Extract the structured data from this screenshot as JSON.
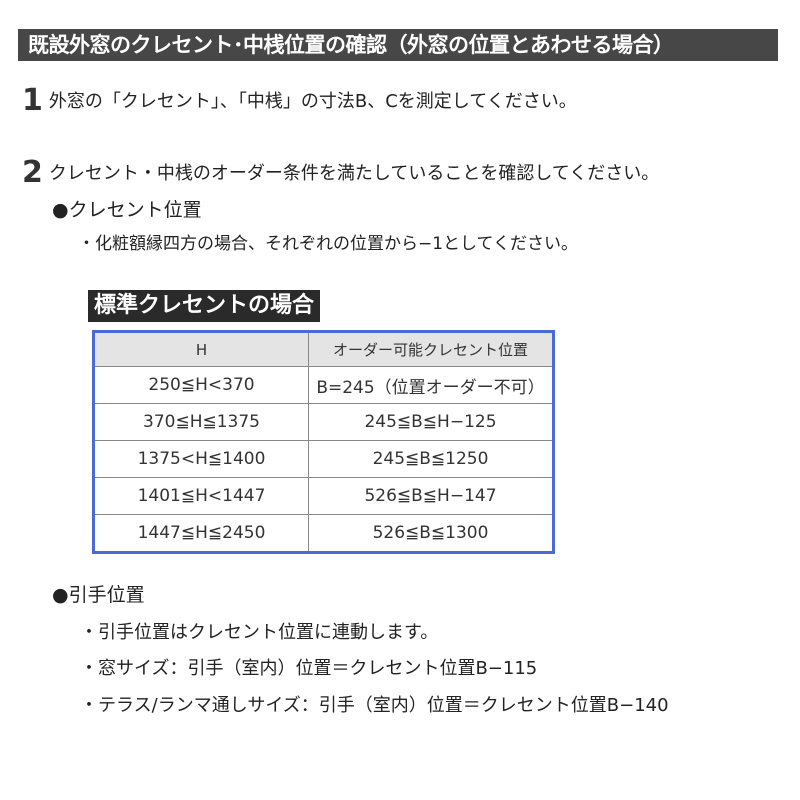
{
  "title": "既設外窓のクレセント･中桟位置の確認（外窓の位置とあわせる場合）",
  "steps": [
    {
      "number": "1",
      "text": "外窓の「クレセント」、「中桟」の寸法B、Cを測定してください。"
    },
    {
      "number": "2",
      "text": "クレセント・中桟のオーダー条件を満たしていることを確認してください。"
    }
  ],
  "crescent_section": {
    "heading": "●クレセント位置",
    "note": "・化粧額縁四方の場合、それぞれの位置から−1としてください。"
  },
  "table": {
    "label": "標準クレセントの場合",
    "headers": [
      "H",
      "オーダー可能クレセント位置"
    ],
    "rows": [
      [
        "250≦H<370",
        "B=245（位置オーダー不可）"
      ],
      [
        "370≦H≦1375",
        "245≦B≦H−125"
      ],
      [
        "1375<H≦1400",
        "245≦B≦1250"
      ],
      [
        "1401≦H<1447",
        "526≦B≦H−147"
      ],
      [
        "1447≦H≦2450",
        "526≦B≦1300"
      ]
    ]
  },
  "handle_section": {
    "heading": "●引手位置",
    "notes": [
      "・引手位置はクレセント位置に連動します。",
      "・窓サイズ：引手（室内）位置＝クレセント位置B−115",
      "・テラス/ランマ通しサイズ：引手（室内）位置＝クレセント位置B−140"
    ]
  }
}
